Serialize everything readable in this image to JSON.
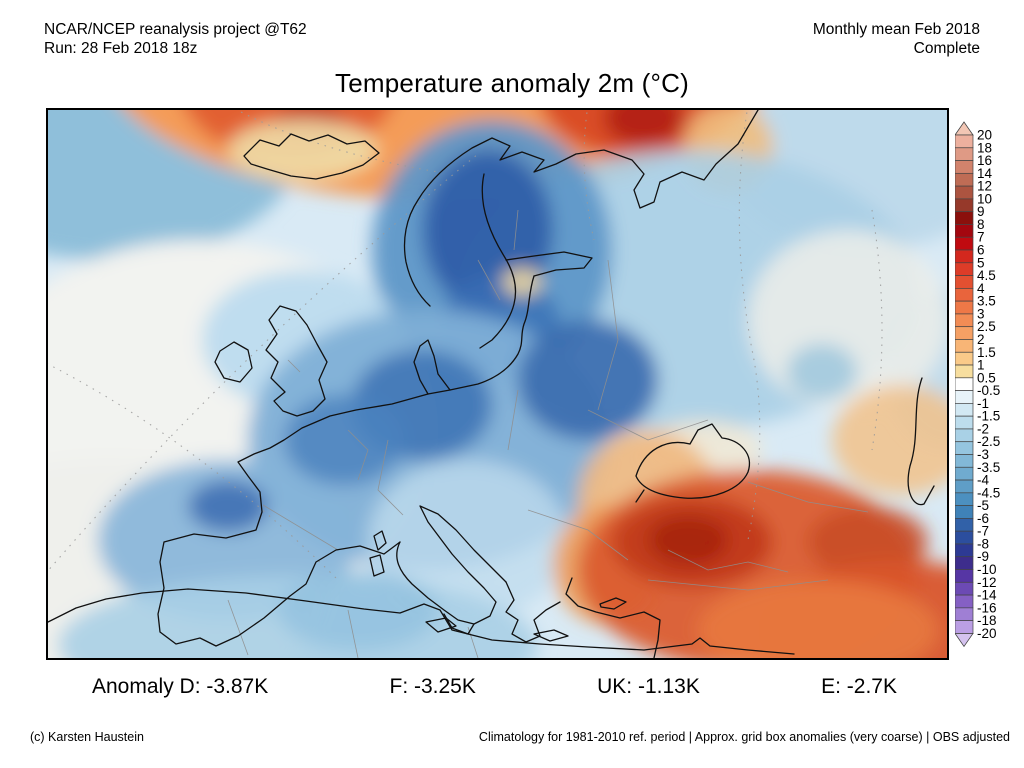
{
  "header": {
    "left_line1": "NCAR/NCEP reanalysis project @T62",
    "left_line2": "Run: 28 Feb 2018 18z",
    "right_line1": "Monthly mean Feb 2018",
    "right_line2": "Complete"
  },
  "title": "Temperature anomaly 2m (°C)",
  "anomaly_row": {
    "germany": "Anomaly D: -3.87K",
    "france": "F: -3.25K",
    "uk": "UK: -1.13K",
    "england_e": "E: -2.7K"
  },
  "footer": {
    "left": "(c) Karsten Haustein",
    "right": "Climatology for 1981-2010 ref. period | Approx. grid box anomalies (very coarse) | OBS adjusted"
  },
  "colorbar": {
    "unit": "°C",
    "tick_labels": [
      "20",
      "18",
      "16",
      "14",
      "12",
      "10",
      "9",
      "8",
      "7",
      "6",
      "5",
      "4.5",
      "4",
      "3.5",
      "3",
      "2.5",
      "2",
      "1.5",
      "1",
      "0.5",
      "-0.5",
      "-1",
      "-1.5",
      "-2",
      "-2.5",
      "-3",
      "-3.5",
      "-4",
      "-4.5",
      "-5",
      "-6",
      "-7",
      "-8",
      "-9",
      "-10",
      "-12",
      "-14",
      "-16",
      "-18",
      "-20"
    ],
    "segment_colors": [
      "#EDB09E",
      "#DF9A85",
      "#D2836C",
      "#BF6C55",
      "#AC5440",
      "#96392A",
      "#8B100C",
      "#A3070F",
      "#C00A10",
      "#D3281E",
      "#DD3C28",
      "#E35031",
      "#E9643C",
      "#EE7847",
      "#F28C55",
      "#F5A064",
      "#F8B576",
      "#FACA89",
      "#F7DE9F",
      "#FFFFFF",
      "#E8F3F9",
      "#D2E8F3",
      "#BDDDED",
      "#A9D1E6",
      "#95C5DF",
      "#82B8D7",
      "#70ABCF",
      "#5F9EC7",
      "#4C90C0",
      "#3F82B8",
      "#3161A8",
      "#2C4E9E",
      "#2D3A94",
      "#3D2D8C",
      "#5636A4",
      "#6C4AB4",
      "#8560C4",
      "#9F7FD4",
      "#BB9FE4"
    ],
    "arrow_top_color": "#F2C6B4",
    "arrow_bottom_color": "#D4C2EE"
  },
  "map": {
    "description": "Temperature anomaly field over Europe, cold (blue) central/western Europe and Scandinavia, warm (red) Turkey/Middle East and Arctic band",
    "base_color": "#D9EAF5",
    "coast_color": "#111111",
    "border_color": "#9a9a9a",
    "field_blobs": [
      [
        60,
        40,
        190,
        110,
        "#8FBFDA",
        1
      ],
      [
        820,
        50,
        140,
        90,
        "#BBD8EA",
        0.9
      ],
      [
        899,
        260,
        60,
        80,
        "#BBD8EA",
        0.8
      ],
      [
        390,
        -60,
        340,
        150,
        "#F49C58",
        1
      ],
      [
        240,
        -30,
        110,
        80,
        "#E05A2E",
        0.9
      ],
      [
        590,
        -20,
        100,
        70,
        "#D84A26",
        0.95
      ],
      [
        596,
        8,
        40,
        28,
        "#B02012",
        0.9
      ],
      [
        262,
        12,
        34,
        22,
        "#C23A1E",
        0.85
      ],
      [
        680,
        38,
        45,
        45,
        "#EFBE7E",
        0.9
      ],
      [
        150,
        320,
        240,
        190,
        "#F2F3F0",
        1
      ],
      [
        60,
        480,
        220,
        130,
        "#EFF0EC",
        1
      ],
      [
        255,
        40,
        75,
        30,
        "#F0DEA8",
        0.9
      ],
      [
        640,
        180,
        230,
        140,
        "#AACFE5",
        0.9
      ],
      [
        800,
        210,
        100,
        90,
        "#EDEFEA",
        0.85
      ],
      [
        774,
        262,
        35,
        28,
        "#8FBFDA",
        0.7
      ],
      [
        444,
        140,
        120,
        130,
        "#5E97C8",
        0.95
      ],
      [
        440,
        120,
        65,
        80,
        "#2F5FA9",
        0.95
      ],
      [
        452,
        215,
        60,
        50,
        "#3A6FB5",
        0.8
      ],
      [
        474,
        172,
        20,
        14,
        "#EFD9A0",
        0.9
      ],
      [
        254,
        230,
        100,
        70,
        "#B9DAEE",
        0.9
      ],
      [
        380,
        330,
        180,
        130,
        "#7FAFD6",
        0.95
      ],
      [
        374,
        295,
        70,
        55,
        "#3F76B6",
        0.9
      ],
      [
        540,
        270,
        70,
        60,
        "#3A6BAE",
        0.9
      ],
      [
        296,
        330,
        60,
        45,
        "#4B82BE",
        0.85
      ],
      [
        180,
        430,
        130,
        80,
        "#85B4D9",
        0.9
      ],
      [
        180,
        396,
        40,
        26,
        "#3A6BB0",
        0.85
      ],
      [
        420,
        430,
        100,
        80,
        "#BFDCEE",
        0.8
      ],
      [
        250,
        535,
        240,
        70,
        "#A8CFE6",
        0.9
      ],
      [
        310,
        500,
        80,
        40,
        "#8FBFDE",
        0.7
      ],
      [
        654,
        340,
        60,
        30,
        "#F2E8D2",
        0.8
      ],
      [
        600,
        390,
        70,
        70,
        "#F0B87E",
        0.9
      ],
      [
        560,
        455,
        55,
        60,
        "#ED9D5A",
        0.9
      ],
      [
        700,
        460,
        170,
        100,
        "#DB5C2E",
        0.95
      ],
      [
        644,
        432,
        80,
        45,
        "#C13A1C",
        0.95
      ],
      [
        640,
        430,
        40,
        25,
        "#A62210",
        0.9
      ],
      [
        820,
        432,
        60,
        35,
        "#C84A24",
        0.85
      ],
      [
        850,
        520,
        140,
        70,
        "#D9542A",
        0.95
      ],
      [
        770,
        520,
        120,
        50,
        "#E87A40",
        0.9
      ],
      [
        854,
        330,
        70,
        55,
        "#F2C28A",
        0.85
      ]
    ]
  }
}
